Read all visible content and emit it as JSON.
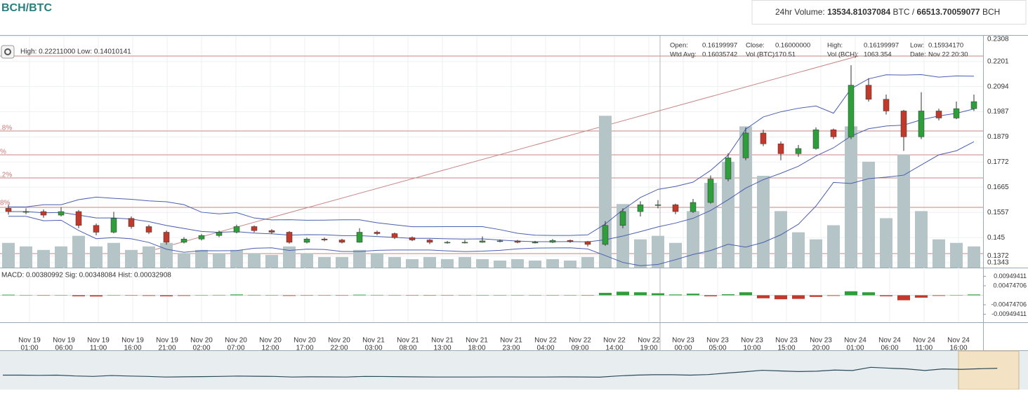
{
  "chart_data": {
    "type": "candlestick",
    "title": "BCH/BTC",
    "volume_box": {
      "label": "24hr Volume:",
      "btc": "13534.81037084",
      "btc_unit": "BTC /",
      "bch": "66513.70059077",
      "bch_unit": "BCH"
    },
    "range_info": "High: 0.22211000  Low: 0.14010141",
    "info": [
      [
        "Open:",
        "0.16199997"
      ],
      [
        "Close:",
        "0.16000000"
      ],
      [
        "High:",
        "0.16199997"
      ],
      [
        "Low:",
        "0.15934170"
      ],
      [
        "Wtd Avg:",
        "0.16035742"
      ],
      [
        "Vol (BTC):",
        "170.51"
      ],
      [
        "Vol (BCH):",
        "1063.354"
      ],
      [
        "Date:",
        "Nov 22 20:30"
      ]
    ],
    "fib_labels": [
      ".8%",
      "%",
      ".2%",
      "8%"
    ],
    "macd_info": "MACD: 0.00380992   Sig: 0.00348084   Hist: 0.00032908",
    "x_labels": [
      [
        "Nov 19",
        "01:00"
      ],
      [
        "Nov 19",
        "06:00"
      ],
      [
        "Nov 19",
        "11:00"
      ],
      [
        "Nov 19",
        "16:00"
      ],
      [
        "Nov 19",
        "21:00"
      ],
      [
        "Nov 20",
        "02:00"
      ],
      [
        "Nov 20",
        "07:00"
      ],
      [
        "Nov 20",
        "12:00"
      ],
      [
        "Nov 20",
        "17:00"
      ],
      [
        "Nov 20",
        "22:00"
      ],
      [
        "Nov 21",
        "03:00"
      ],
      [
        "Nov 21",
        "08:00"
      ],
      [
        "Nov 21",
        "13:00"
      ],
      [
        "Nov 21",
        "18:00"
      ],
      [
        "Nov 21",
        "23:00"
      ],
      [
        "Nov 22",
        "04:00"
      ],
      [
        "Nov 22",
        "09:00"
      ],
      [
        "Nov 22",
        "14:00"
      ],
      [
        "Nov 22",
        "19:00"
      ],
      [
        "Nov 23",
        "00:00"
      ],
      [
        "Nov 23",
        "05:00"
      ],
      [
        "Nov 23",
        "10:00"
      ],
      [
        "Nov 23",
        "15:00"
      ],
      [
        "Nov 23",
        "20:00"
      ],
      [
        "Nov 24",
        "01:00"
      ],
      [
        "Nov 24",
        "06:00"
      ],
      [
        "Nov 24",
        "11:00"
      ],
      [
        "Nov 24",
        "16:00"
      ]
    ],
    "open": [
      0.1575,
      0.1561,
      0.1561,
      0.1546,
      0.1561,
      0.1502,
      0.1473,
      0.1532,
      0.1497,
      0.1473,
      0.143,
      0.1444,
      0.1459,
      0.1473,
      0.1497,
      0.148,
      0.1473,
      0.143,
      0.1444,
      0.144,
      0.143,
      0.1473,
      0.1467,
      0.145,
      0.144,
      0.143,
      0.143,
      0.143,
      0.1436,
      0.1436,
      0.143,
      0.143,
      0.1438,
      0.1433,
      0.1421,
      0.1502,
      0.1561,
      0.159,
      0.159,
      0.1561,
      0.16,
      0.17,
      0.179,
      0.1896,
      0.185,
      0.1808,
      0.183,
      0.191,
      0.188,
      0.21,
      0.204,
      0.199,
      0.188,
      0.199,
      0.196,
      0.2
    ],
    "high": [
      0.159,
      0.1575,
      0.157,
      0.158,
      0.1568,
      0.151,
      0.156,
      0.154,
      0.1505,
      0.148,
      0.1452,
      0.1465,
      0.148,
      0.1505,
      0.1502,
      0.1486,
      0.1478,
      0.145,
      0.145,
      0.1445,
      0.149,
      0.148,
      0.1472,
      0.1455,
      0.1444,
      0.1436,
      0.144,
      0.1455,
      0.1442,
      0.144,
      0.1436,
      0.1444,
      0.1442,
      0.1436,
      0.152,
      0.1575,
      0.1605,
      0.161,
      0.1595,
      0.1615,
      0.1715,
      0.181,
      0.192,
      0.191,
      0.186,
      0.1845,
      0.192,
      0.1915,
      0.2185,
      0.213,
      0.206,
      0.1995,
      0.207,
      0.2,
      0.203,
      0.206
    ],
    "low": [
      0.1548,
      0.155,
      0.1535,
      0.154,
      0.149,
      0.146,
      0.1468,
      0.1488,
      0.1465,
      0.142,
      0.1425,
      0.1438,
      0.1452,
      0.1468,
      0.1472,
      0.1465,
      0.1424,
      0.1425,
      0.1434,
      0.1425,
      0.1428,
      0.146,
      0.1444,
      0.1435,
      0.1422,
      0.1424,
      0.1425,
      0.1428,
      0.143,
      0.1426,
      0.1425,
      0.1427,
      0.1428,
      0.1412,
      0.1415,
      0.149,
      0.154,
      0.1575,
      0.155,
      0.1555,
      0.1595,
      0.169,
      0.178,
      0.184,
      0.178,
      0.1795,
      0.1825,
      0.187,
      0.187,
      0.203,
      0.1975,
      0.182,
      0.187,
      0.195,
      0.1955,
      0.199
    ],
    "close": [
      0.1561,
      0.1561,
      0.1546,
      0.1561,
      0.1502,
      0.1473,
      0.1532,
      0.1497,
      0.1473,
      0.143,
      0.1444,
      0.1459,
      0.1473,
      0.1497,
      0.148,
      0.1473,
      0.143,
      0.1444,
      0.144,
      0.143,
      0.1473,
      0.1467,
      0.145,
      0.144,
      0.143,
      0.143,
      0.143,
      0.1436,
      0.1436,
      0.143,
      0.143,
      0.1438,
      0.1433,
      0.1421,
      0.1502,
      0.1561,
      0.159,
      0.159,
      0.1561,
      0.16,
      0.17,
      0.179,
      0.1896,
      0.185,
      0.1808,
      0.183,
      0.191,
      0.188,
      0.21,
      0.204,
      0.199,
      0.188,
      0.199,
      0.196,
      0.2,
      0.203
    ],
    "volume": [
      35,
      30,
      25,
      30,
      45,
      30,
      35,
      25,
      30,
      35,
      20,
      25,
      20,
      25,
      20,
      18,
      30,
      20,
      15,
      15,
      25,
      20,
      15,
      12,
      15,
      12,
      15,
      12,
      10,
      12,
      10,
      12,
      10,
      15,
      215,
      90,
      40,
      45,
      35,
      80,
      120,
      150,
      200,
      130,
      80,
      50,
      40,
      60,
      200,
      150,
      70,
      160,
      80,
      40,
      35,
      30
    ],
    "volume_lim": [
      0,
      250
    ],
    "macd_hist": [
      0.0003,
      0,
      -0.0002,
      0,
      -0.0005,
      -0.0006,
      0,
      -0.0002,
      -0.0003,
      -0.0005,
      -0.0003,
      0,
      0.0002,
      0.0004,
      0.0002,
      0.0001,
      -0.0003,
      -0.0002,
      -0.0001,
      -0.0002,
      0.0003,
      0.0002,
      0,
      -0.0001,
      -0.0002,
      -0.0001,
      0,
      0.0001,
      0.0001,
      0,
      0,
      0.0001,
      0,
      -0.0002,
      0.0012,
      0.0018,
      0.0015,
      0.001,
      0.0004,
      0.0008,
      -0.0005,
      0.0005,
      0.0015,
      -0.0015,
      -0.002,
      -0.0018,
      -0.0008,
      -0.0003,
      0.002,
      0.0015,
      -0.0005,
      -0.0025,
      -0.0012,
      -0.0003,
      0,
      0.0004
    ],
    "ylim": [
      0.1343,
      0.2308
    ],
    "yticks": [
      0.2308,
      0.2201,
      0.2094,
      0.1987,
      0.1879,
      0.1772,
      0.1665,
      0.1557,
      0.145,
      {
        "value": 0.1372,
        "label": "0.1372"
      },
      0.1343
    ],
    "macd_ylim": [
      -0.0135,
      0.0135
    ],
    "macd_yticks": [
      0.00949411,
      0.00474706,
      -0.00474706,
      -0.00949411
    ],
    "up_color": "#2e9e3a",
    "down_color": "#c0392b",
    "volume_color": "#b5c4c7",
    "grid": true
  }
}
